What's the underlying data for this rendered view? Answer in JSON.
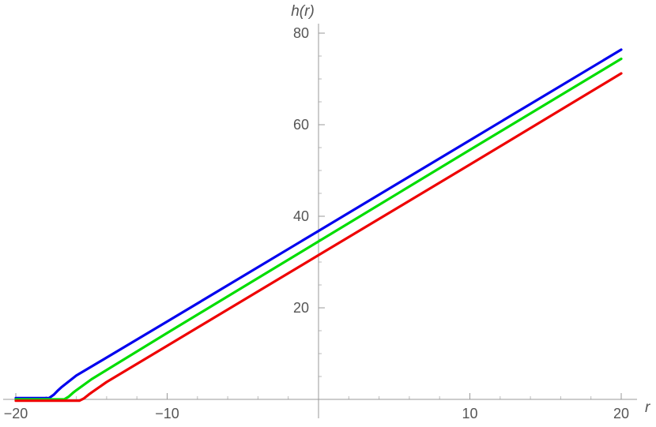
{
  "chart_data": {
    "type": "line",
    "title": "",
    "xlabel": "r",
    "ylabel": "h(r)",
    "xlim": [
      -20,
      20
    ],
    "ylim": [
      0,
      80
    ],
    "x_ticks": [
      -20,
      -10,
      10,
      20
    ],
    "y_ticks": [
      20,
      40,
      60,
      80
    ],
    "x_tick_labels": [
      "−20",
      "−10",
      "10",
      "20"
    ],
    "y_tick_labels": [
      "20",
      "40",
      "60",
      "80"
    ],
    "grid": false,
    "series": [
      {
        "color": "#0000ee",
        "x": [
          -20,
          -17.8,
          -17.5,
          -17.2,
          -17,
          -16,
          -10,
          0,
          10,
          20
        ],
        "y": [
          0.3,
          0.3,
          1.0,
          2.0,
          2.6,
          5.2,
          17.0,
          36.8,
          56.6,
          76.4
        ]
      },
      {
        "color": "#00dd00",
        "x": [
          -20,
          -16.8,
          -16.5,
          -16.2,
          -16,
          -15,
          -10,
          0,
          10,
          20
        ],
        "y": [
          0.0,
          0.0,
          0.6,
          1.5,
          2.0,
          4.4,
          14.5,
          34.5,
          54.5,
          74.4
        ]
      },
      {
        "color": "#ee0000",
        "x": [
          -20,
          -15.8,
          -15.5,
          -15.2,
          -15,
          -14,
          -10,
          0,
          10,
          20
        ],
        "y": [
          -0.3,
          -0.3,
          0.2,
          1.0,
          1.5,
          3.8,
          11.7,
          31.5,
          51.3,
          71.2
        ]
      }
    ]
  }
}
